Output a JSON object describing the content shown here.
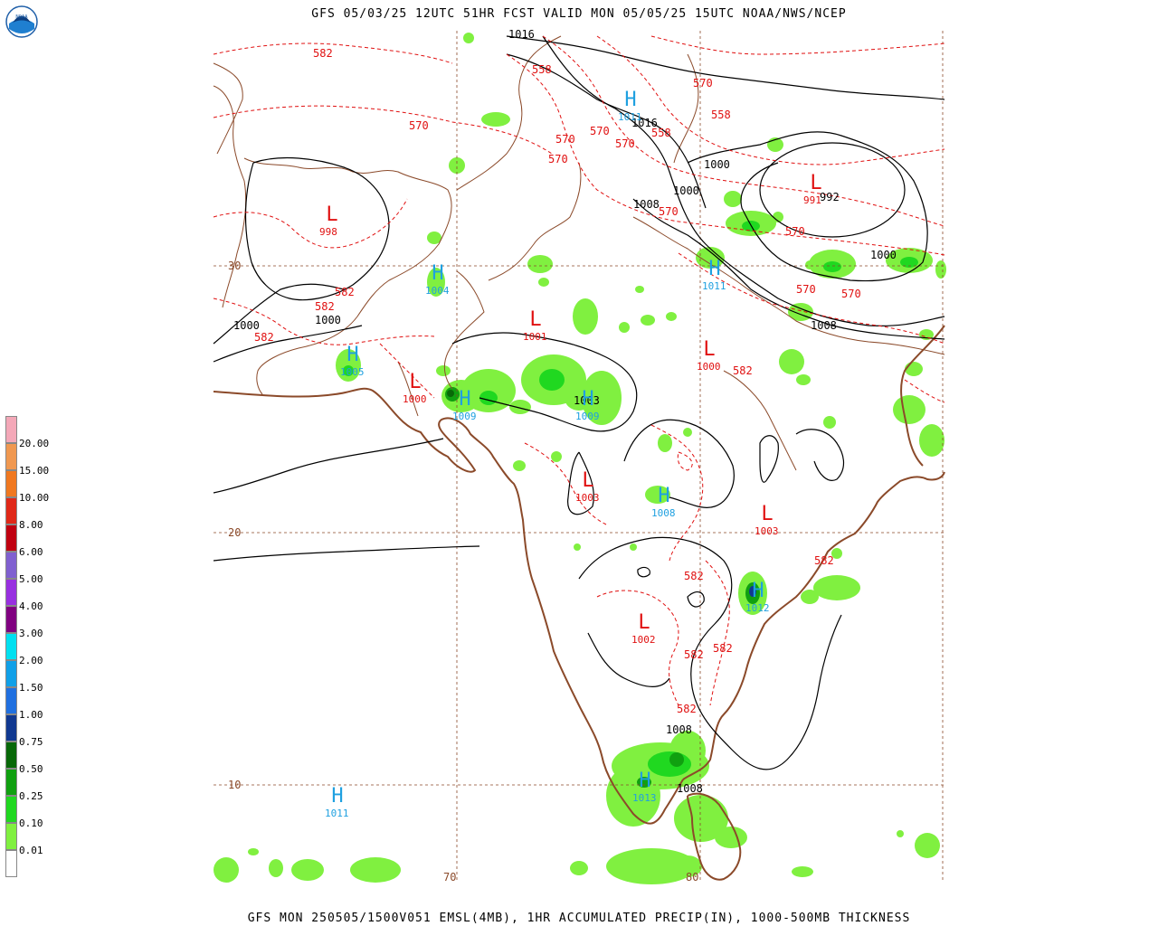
{
  "title": "GFS 05/03/25 12UTC 51HR FCST VALID MON 05/05/25 15UTC NOAA/NWS/NCEP",
  "footer": "GFS MON 250505/1500V051 EMSL(4MB), 1HR ACCUMULATED PRECIP(IN), 1000-500MB THICKNESS",
  "logo": {
    "text": "NOAA",
    "icon": "noaa-logo-icon"
  },
  "colors": {
    "high": "#1fa0e0",
    "low": "#e01010",
    "thickness": "#e01010",
    "isobar": "#000000",
    "coast": "#8b4a2a",
    "grid": "#8b4a2a"
  },
  "legend": [
    {
      "label": "20.00",
      "color": "#f4a8b8"
    },
    {
      "label": "15.00",
      "color": "#f09850"
    },
    {
      "label": "10.00",
      "color": "#f07820"
    },
    {
      "label": "8.00",
      "color": "#e02818"
    },
    {
      "label": "6.00",
      "color": "#c00010"
    },
    {
      "label": "5.00",
      "color": "#8060d0"
    },
    {
      "label": "4.00",
      "color": "#9830e0"
    },
    {
      "label": "3.00",
      "color": "#800080"
    },
    {
      "label": "2.00",
      "color": "#00e0f0"
    },
    {
      "label": "1.50",
      "color": "#10a0e8"
    },
    {
      "label": "1.00",
      "color": "#2070e0"
    },
    {
      "label": "0.75",
      "color": "#103890"
    },
    {
      "label": "0.50",
      "color": "#086808"
    },
    {
      "label": "0.25",
      "color": "#10a010"
    },
    {
      "label": "0.10",
      "color": "#20d820"
    },
    {
      "label": "0.01",
      "color": "#80f040"
    },
    {
      "label": "",
      "color": "#ffffff"
    }
  ],
  "grid_labels": {
    "lats": [
      {
        "label": "30"
      },
      {
        "label": "20"
      },
      {
        "label": "10"
      }
    ],
    "lons": [
      {
        "label": "70"
      },
      {
        "label": "80"
      }
    ]
  },
  "highs": [
    {
      "sym": "H",
      "val": "1011"
    },
    {
      "sym": "H",
      "val": "1004"
    },
    {
      "sym": "H",
      "val": "1011"
    },
    {
      "sym": "H",
      "val": "1005"
    },
    {
      "sym": "H",
      "val": "1009"
    },
    {
      "sym": "H",
      "val": "1009"
    },
    {
      "sym": "H",
      "val": "1008"
    },
    {
      "sym": "H",
      "val": "1012"
    },
    {
      "sym": "H",
      "val": "1013"
    },
    {
      "sym": "H",
      "val": "1011"
    }
  ],
  "lows": [
    {
      "sym": "L",
      "val": "998"
    },
    {
      "sym": "L",
      "val": "1001"
    },
    {
      "sym": "L",
      "val": "1000"
    },
    {
      "sym": "L",
      "val": "1000"
    },
    {
      "sym": "L",
      "val": "1003"
    },
    {
      "sym": "L",
      "val": "1003"
    },
    {
      "sym": "L",
      "val": "1002"
    },
    {
      "sym": "L",
      "val": "991"
    }
  ],
  "isobar_labels": [
    "1016",
    "1016",
    "1000",
    "1000",
    "1008",
    "992",
    "1000",
    "1000",
    "1000",
    "1008",
    "1003",
    "1008",
    "1008"
  ],
  "thickness_labels": [
    "582",
    "558",
    "570",
    "558",
    "570",
    "570",
    "570",
    "570",
    "558",
    "570",
    "570",
    "570",
    "570",
    "570",
    "582",
    "582",
    "582",
    "582",
    "582",
    "582",
    "582",
    "582",
    "582"
  ]
}
